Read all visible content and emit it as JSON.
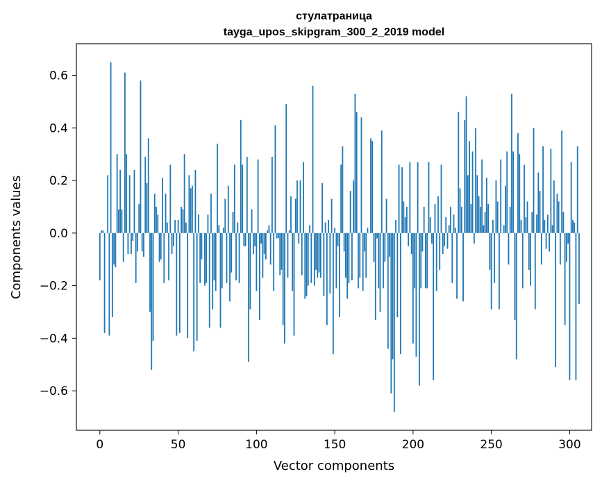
{
  "chart_data": {
    "type": "bar",
    "title": "стулатраница",
    "subtitle": "tayga_upos_skipgram_300_2_2019 model",
    "xlabel": "Vector components",
    "ylabel": "Components values",
    "xlim": [
      -15,
      314
    ],
    "ylim": [
      -0.75,
      0.72
    ],
    "xticks": [
      0,
      50,
      100,
      150,
      200,
      250,
      300
    ],
    "xtick_labels": [
      "0",
      "50",
      "100",
      "150",
      "200",
      "250",
      "300"
    ],
    "yticks": [
      0.6,
      0.4,
      0.2,
      0.0,
      -0.2,
      -0.4,
      -0.6
    ],
    "ytick_labels": [
      "0.6",
      "0.4",
      "0.2",
      "0.0",
      "−0.2",
      "−0.4",
      "−0.6"
    ],
    "bar_color": "#1f77b4",
    "grid": false,
    "values": [
      -0.18,
      0.01,
      0.01,
      -0.38,
      0.0,
      0.22,
      -0.39,
      0.65,
      -0.32,
      -0.12,
      -0.13,
      0.3,
      0.09,
      0.24,
      0.09,
      -0.11,
      0.61,
      0.3,
      -0.08,
      0.22,
      -0.08,
      -0.03,
      0.24,
      -0.19,
      -0.07,
      0.11,
      0.58,
      -0.07,
      -0.09,
      0.29,
      0.19,
      0.36,
      -0.3,
      -0.52,
      -0.41,
      0.15,
      0.1,
      0.07,
      -0.11,
      -0.1,
      0.21,
      -0.19,
      0.15,
      0.04,
      -0.18,
      0.26,
      -0.08,
      -0.05,
      0.05,
      -0.39,
      0.05,
      -0.38,
      0.1,
      0.09,
      0.3,
      0.04,
      -0.4,
      0.22,
      0.17,
      0.18,
      -0.45,
      0.24,
      -0.41,
      0.07,
      -0.19,
      -0.1,
      0.0,
      -0.2,
      -0.19,
      0.07,
      -0.36,
      0.15,
      -0.29,
      -0.18,
      -0.22,
      0.34,
      0.03,
      -0.36,
      -0.21,
      0.02,
      0.13,
      -0.19,
      0.18,
      -0.26,
      -0.15,
      0.08,
      0.26,
      -0.18,
      0.04,
      -0.19,
      0.43,
      0.26,
      -0.05,
      -0.05,
      0.29,
      -0.49,
      -0.29,
      0.09,
      -0.08,
      -0.05,
      -0.22,
      0.28,
      -0.33,
      -0.04,
      -0.17,
      -0.08,
      -0.1,
      0.01,
      0.03,
      -0.12,
      0.29,
      -0.22,
      0.41,
      -0.02,
      -0.02,
      -0.16,
      -0.14,
      -0.35,
      -0.42,
      0.49,
      -0.17,
      0.01,
      0.14,
      -0.22,
      -0.39,
      0.13,
      0.2,
      -0.04,
      0.2,
      -0.16,
      0.27,
      -0.25,
      -0.24,
      -0.2,
      0.03,
      -0.19,
      0.56,
      -0.2,
      -0.14,
      -0.17,
      -0.15,
      -0.17,
      0.19,
      -0.24,
      0.04,
      -0.35,
      0.05,
      -0.23,
      0.13,
      -0.46,
      0.02,
      -0.21,
      -0.05,
      -0.32,
      0.26,
      0.33,
      -0.07,
      -0.17,
      -0.25,
      -0.19,
      0.16,
      -0.18,
      0.2,
      0.53,
      0.46,
      -0.21,
      -0.17,
      0.44,
      -0.22,
      -0.07,
      -0.17,
      0.02,
      0.0,
      0.36,
      0.35,
      -0.11,
      -0.33,
      -0.02,
      -0.21,
      -0.3,
      0.39,
      -0.21,
      -0.11,
      0.13,
      -0.44,
      -0.09,
      -0.61,
      -0.48,
      -0.68,
      0.05,
      -0.32,
      0.26,
      -0.46,
      0.25,
      0.12,
      0.06,
      0.1,
      -0.05,
      0.27,
      -0.08,
      -0.42,
      -0.21,
      -0.47,
      0.27,
      -0.58,
      -0.21,
      -0.07,
      0.1,
      -0.21,
      -0.21,
      0.27,
      0.06,
      -0.04,
      -0.56,
      0.11,
      -0.22,
      0.14,
      -0.14,
      0.26,
      -0.08,
      -0.05,
      0.06,
      -0.06,
      0.03,
      0.1,
      -0.19,
      0.07,
      0.02,
      -0.25,
      0.46,
      0.17,
      0.1,
      -0.26,
      0.43,
      0.52,
      0.22,
      0.35,
      0.11,
      0.31,
      -0.04,
      0.4,
      0.22,
      0.14,
      0.1,
      0.28,
      0.03,
      0.08,
      0.21,
      0.11,
      -0.14,
      -0.29,
      0.05,
      -0.19,
      0.2,
      0.12,
      -0.29,
      0.28,
      0.0,
      0.03,
      0.18,
      0.31,
      -0.12,
      0.1,
      0.53,
      0.31,
      -0.33,
      -0.48,
      0.38,
      0.3,
      0.05,
      -0.21,
      0.26,
      0.06,
      0.12,
      -0.14,
      -0.2,
      0.08,
      0.4,
      -0.29,
      0.07,
      0.23,
      0.16,
      -0.12,
      0.33,
      0.05,
      -0.06,
      0.07,
      -0.07,
      0.32,
      0.03,
      0.2,
      -0.51,
      0.15,
      0.12,
      -0.12,
      0.39,
      0.08,
      -0.35,
      -0.11,
      -0.04,
      -0.56,
      0.27,
      0.05,
      0.04,
      -0.56,
      0.33,
      -0.27
    ]
  }
}
